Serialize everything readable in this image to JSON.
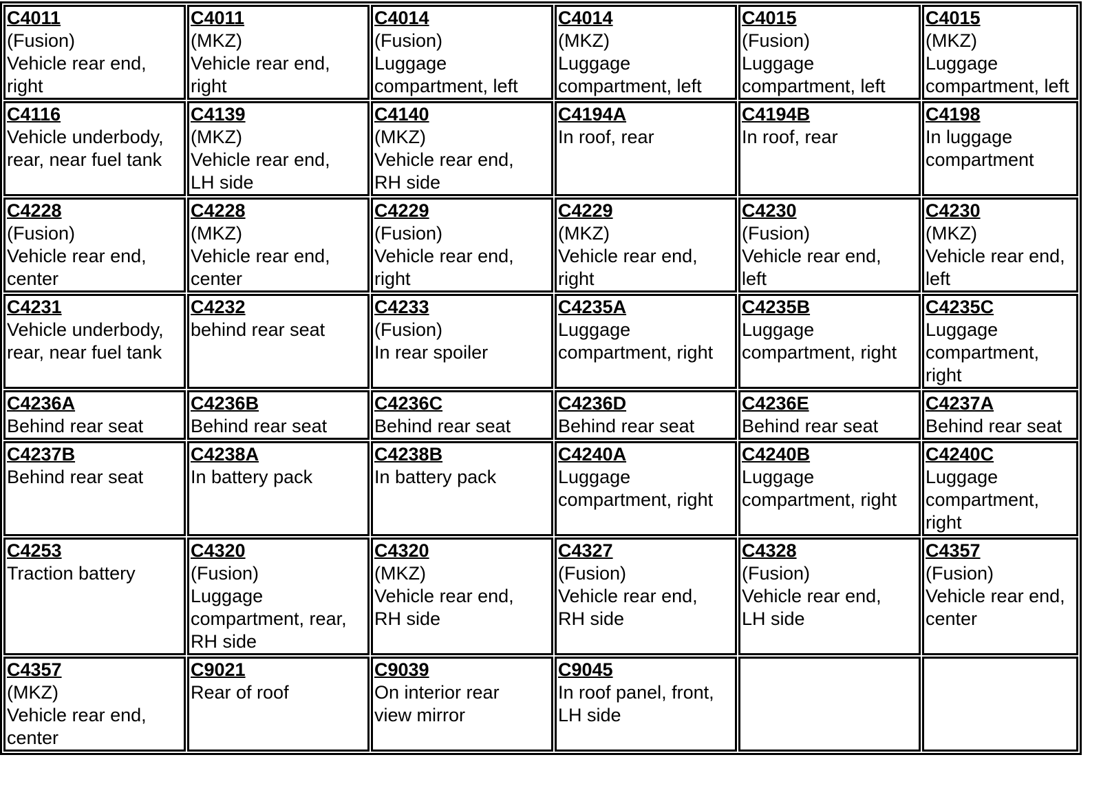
{
  "rows": [
    {
      "cells": [
        {
          "code": "C4011",
          "lines": [
            "(Fusion)",
            "Vehicle rear end,",
            "right"
          ]
        },
        {
          "code": "C4011",
          "lines": [
            "(MKZ)",
            "Vehicle rear end,",
            "right"
          ]
        },
        {
          "code": "C4014",
          "lines": [
            "(Fusion)",
            "Luggage",
            "compartment, left"
          ]
        },
        {
          "code": "C4014",
          "lines": [
            "(MKZ)",
            "Luggage",
            "compartment, left"
          ]
        },
        {
          "code": "C4015",
          "lines": [
            "(Fusion)",
            "Luggage",
            "compartment, left"
          ]
        },
        {
          "code": "C4015",
          "lines": [
            "(MKZ)",
            "Luggage",
            "compartment, left"
          ]
        }
      ]
    },
    {
      "cells": [
        {
          "code": "C4116",
          "lines": [
            "Vehicle underbody,",
            "rear, near fuel tank"
          ]
        },
        {
          "code": "C4139",
          "lines": [
            "(MKZ)",
            "Vehicle rear end,",
            "LH side"
          ]
        },
        {
          "code": "C4140",
          "lines": [
            "(MKZ)",
            "Vehicle rear end,",
            "RH side"
          ]
        },
        {
          "code": "C4194A",
          "lines": [
            "In roof, rear"
          ]
        },
        {
          "code": "C4194B",
          "lines": [
            "In roof, rear"
          ]
        },
        {
          "code": "C4198",
          "lines": [
            "In luggage",
            "compartment"
          ]
        }
      ]
    },
    {
      "cells": [
        {
          "code": "C4228",
          "lines": [
            "(Fusion)",
            "Vehicle rear end,",
            "center"
          ]
        },
        {
          "code": "C4228",
          "lines": [
            "(MKZ)",
            "Vehicle rear end,",
            "center"
          ]
        },
        {
          "code": "C4229",
          "lines": [
            "(Fusion)",
            "Vehicle rear end,",
            "right"
          ]
        },
        {
          "code": "C4229",
          "lines": [
            "(MKZ)",
            "Vehicle rear end,",
            "right"
          ]
        },
        {
          "code": "C4230",
          "lines": [
            "(Fusion)",
            "Vehicle rear end,",
            "left"
          ]
        },
        {
          "code": "C4230",
          "lines": [
            "(MKZ)",
            "Vehicle rear end,",
            "left"
          ]
        }
      ]
    },
    {
      "cells": [
        {
          "code": "C4231",
          "lines": [
            "Vehicle underbody,",
            "rear, near fuel tank"
          ]
        },
        {
          "code": "C4232",
          "lines": [
            "behind rear seat"
          ]
        },
        {
          "code": "C4233",
          "lines": [
            "(Fusion)",
            "In rear spoiler"
          ]
        },
        {
          "code": "C4235A",
          "lines": [
            "Luggage",
            "compartment, right"
          ]
        },
        {
          "code": "C4235B",
          "lines": [
            "Luggage",
            "compartment, right"
          ]
        },
        {
          "code": "C4235C",
          "lines": [
            "Luggage",
            "compartment,",
            "right"
          ]
        }
      ]
    },
    {
      "cells": [
        {
          "code": "C4236A",
          "lines": [
            "Behind rear seat"
          ]
        },
        {
          "code": "C4236B",
          "lines": [
            "Behind rear seat"
          ]
        },
        {
          "code": "C4236C",
          "lines": [
            "Behind rear seat"
          ]
        },
        {
          "code": "C4236D",
          "lines": [
            "Behind rear seat"
          ]
        },
        {
          "code": "C4236E",
          "lines": [
            "Behind rear seat"
          ]
        },
        {
          "code": "C4237A",
          "lines": [
            "Behind rear seat"
          ]
        }
      ]
    },
    {
      "cells": [
        {
          "code": "C4237B",
          "lines": [
            "Behind rear seat"
          ]
        },
        {
          "code": "C4238A",
          "lines": [
            "In battery pack"
          ]
        },
        {
          "code": "C4238B",
          "lines": [
            "In battery pack"
          ]
        },
        {
          "code": "C4240A",
          "lines": [
            "Luggage",
            "compartment, right"
          ]
        },
        {
          "code": "C4240B",
          "lines": [
            "Luggage",
            "compartment, right"
          ]
        },
        {
          "code": "C4240C",
          "lines": [
            "Luggage",
            "compartment,",
            "right"
          ]
        }
      ]
    },
    {
      "cells": [
        {
          "code": "C4253",
          "lines": [
            "Traction battery"
          ]
        },
        {
          "code": "C4320",
          "lines": [
            "(Fusion)",
            "Luggage",
            "compartment, rear,",
            "RH side"
          ]
        },
        {
          "code": "C4320",
          "lines": [
            "(MKZ)",
            "Vehicle rear end,",
            "RH side"
          ]
        },
        {
          "code": "C4327",
          "lines": [
            "(Fusion)",
            "Vehicle rear end,",
            "RH side"
          ]
        },
        {
          "code": "C4328",
          "lines": [
            "(Fusion)",
            "Vehicle rear end,",
            "LH side"
          ]
        },
        {
          "code": "C4357",
          "lines": [
            "(Fusion)",
            "Vehicle rear end,",
            "center"
          ]
        }
      ]
    },
    {
      "cells": [
        {
          "code": "C4357",
          "lines": [
            "(MKZ)",
            "Vehicle rear end,",
            "center"
          ]
        },
        {
          "code": "C9021",
          "lines": [
            "Rear of roof"
          ]
        },
        {
          "code": "C9039",
          "lines": [
            "On interior rear",
            "view mirror"
          ]
        },
        {
          "code": "C9045",
          "lines": [
            "In roof panel, front,",
            "LH side"
          ]
        },
        {
          "code": "",
          "lines": []
        },
        {
          "code": "",
          "lines": []
        }
      ]
    }
  ]
}
